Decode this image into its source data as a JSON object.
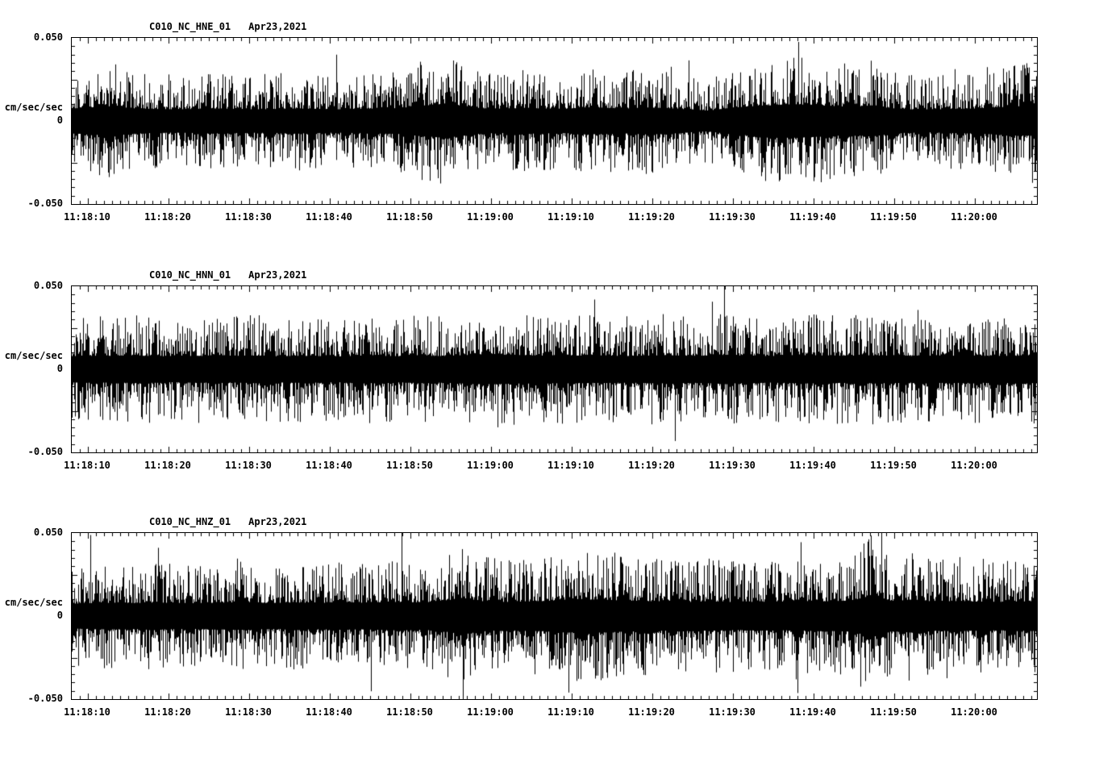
{
  "page": {
    "background": "#ffffff",
    "trace_color": "#000000"
  },
  "chart_data": [
    {
      "type": "line",
      "kind": "seismogram",
      "title": "C010_NC_HNE_01",
      "date_label": "Apr23,2021",
      "ylabel": "cm/sec/sec",
      "ytick_labels": [
        "0.050",
        "0",
        "-0.050"
      ],
      "ylim": [
        -0.05,
        0.05
      ],
      "xtick_labels": [
        "11:18:10",
        "11:18:20",
        "11:18:30",
        "11:18:40",
        "11:18:50",
        "11:19:00",
        "11:19:10",
        "11:19:20",
        "11:19:30",
        "11:19:40",
        "11:19:50",
        "11:20:00"
      ],
      "time_window": [
        "11:18:08",
        "11:20:08"
      ],
      "grid": false,
      "legend": false,
      "envelope_fullscale": 0.05,
      "envelope": [
        0.6,
        0.65,
        0.72,
        0.6,
        0.58,
        0.56,
        0.58,
        0.6,
        0.58,
        0.56,
        0.58,
        0.6,
        0.58,
        0.56,
        0.58,
        0.6,
        0.62,
        0.72,
        0.8,
        0.72,
        0.6,
        0.58,
        0.62,
        0.6,
        0.58,
        0.65,
        0.62,
        0.6,
        0.65,
        0.62,
        0.55,
        0.5,
        0.62,
        0.7,
        0.75,
        0.8,
        0.78,
        0.72,
        0.68,
        0.75,
        0.6,
        0.55,
        0.55,
        0.58,
        0.6,
        0.65,
        0.7,
        0.7
      ],
      "seed": 101
    },
    {
      "type": "line",
      "kind": "seismogram",
      "title": "C010_NC_HNN_01",
      "date_label": "Apr23,2021",
      "ylabel": "cm/sec/sec",
      "ytick_labels": [
        "0.050",
        "0",
        "-0.050"
      ],
      "ylim": [
        -0.05,
        0.05
      ],
      "xtick_labels": [
        "11:18:10",
        "11:18:20",
        "11:18:30",
        "11:18:40",
        "11:18:50",
        "11:19:00",
        "11:19:10",
        "11:19:20",
        "11:19:30",
        "11:19:40",
        "11:19:50",
        "11:20:00"
      ],
      "time_window": [
        "11:18:08",
        "11:20:08"
      ],
      "grid": false,
      "legend": false,
      "envelope_fullscale": 0.05,
      "envelope": [
        0.62,
        0.65,
        0.63,
        0.66,
        0.64,
        0.62,
        0.65,
        0.63,
        0.64,
        0.66,
        0.63,
        0.65,
        0.64,
        0.62,
        0.66,
        0.65,
        0.63,
        0.66,
        0.64,
        0.68,
        0.72,
        0.7,
        0.68,
        0.66,
        0.68,
        0.65,
        0.66,
        0.64,
        0.66,
        0.68,
        0.65,
        0.66,
        0.68,
        0.66,
        0.64,
        0.66,
        0.68,
        0.66,
        0.65,
        0.67,
        0.66,
        0.64,
        0.66,
        0.65,
        0.66,
        0.64,
        0.65,
        0.66
      ],
      "seed": 202
    },
    {
      "type": "line",
      "kind": "seismogram",
      "title": "C010_NC_HNZ_01",
      "date_label": "Apr23,2021",
      "ylabel": "cm/sec/sec",
      "ytick_labels": [
        "0.050",
        "0",
        "-0.050"
      ],
      "ylim": [
        -0.05,
        0.05
      ],
      "xtick_labels": [
        "11:18:10",
        "11:18:20",
        "11:18:30",
        "11:18:40",
        "11:18:50",
        "11:19:00",
        "11:19:10",
        "11:19:20",
        "11:19:30",
        "11:19:40",
        "11:19:50",
        "11:20:00"
      ],
      "time_window": [
        "11:18:08",
        "11:20:08"
      ],
      "grid": false,
      "legend": false,
      "envelope_fullscale": 0.05,
      "envelope": [
        0.6,
        0.62,
        0.64,
        0.62,
        0.65,
        0.63,
        0.62,
        0.64,
        0.66,
        0.64,
        0.62,
        0.65,
        0.63,
        0.66,
        0.64,
        0.66,
        0.68,
        0.66,
        0.7,
        0.88,
        0.72,
        0.68,
        0.7,
        0.72,
        0.78,
        0.8,
        0.78,
        0.75,
        0.72,
        0.7,
        0.68,
        0.7,
        0.68,
        0.66,
        0.7,
        0.68,
        0.7,
        0.72,
        0.75,
        1.0,
        0.72,
        0.8,
        0.7,
        0.72,
        0.7,
        0.68,
        0.7,
        0.72
      ],
      "seed": 303
    }
  ]
}
